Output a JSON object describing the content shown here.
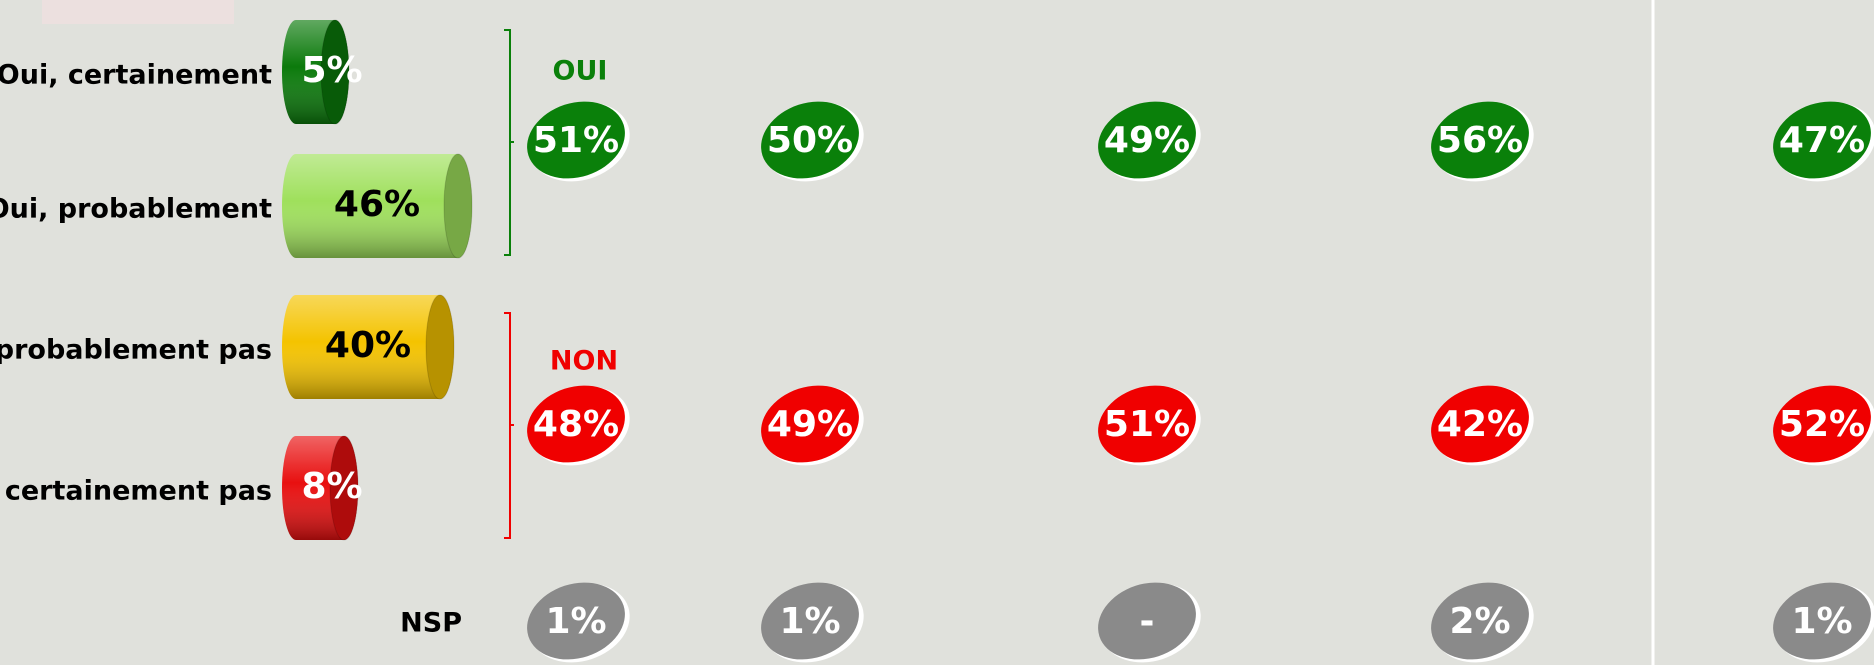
{
  "chart_data": {
    "type": "bar",
    "categories": [
      "Oui, certainement",
      "Oui, probablement",
      "probablement pas",
      ", certainement pas"
    ],
    "values": [
      5,
      46,
      40,
      8
    ],
    "value_labels": [
      "5%",
      "46%",
      "40%",
      "8%"
    ],
    "colors": [
      "#0b7a0b",
      "#9fe05c",
      "#f4c300",
      "#e81010"
    ],
    "label_colors": [
      "#ffffff",
      "#000000",
      "#000000",
      "#ffffff"
    ],
    "summary_rows": [
      {
        "name": "OUI",
        "color": "#0a800a",
        "values": [
          51,
          50,
          49,
          56,
          47
        ],
        "value_labels": [
          "51%",
          "50%",
          "49%",
          "56%",
          "47%"
        ]
      },
      {
        "name": "NON",
        "color": "#f00000",
        "values": [
          48,
          49,
          51,
          42,
          52
        ],
        "value_labels": [
          "48%",
          "49%",
          "51%",
          "42%",
          "52%"
        ]
      },
      {
        "name": "NSP",
        "color": "#8a8a8a",
        "values": [
          1,
          1,
          null,
          2,
          1
        ],
        "value_labels": [
          "1%",
          "1%",
          "-",
          "2%",
          "1%"
        ]
      }
    ]
  }
}
